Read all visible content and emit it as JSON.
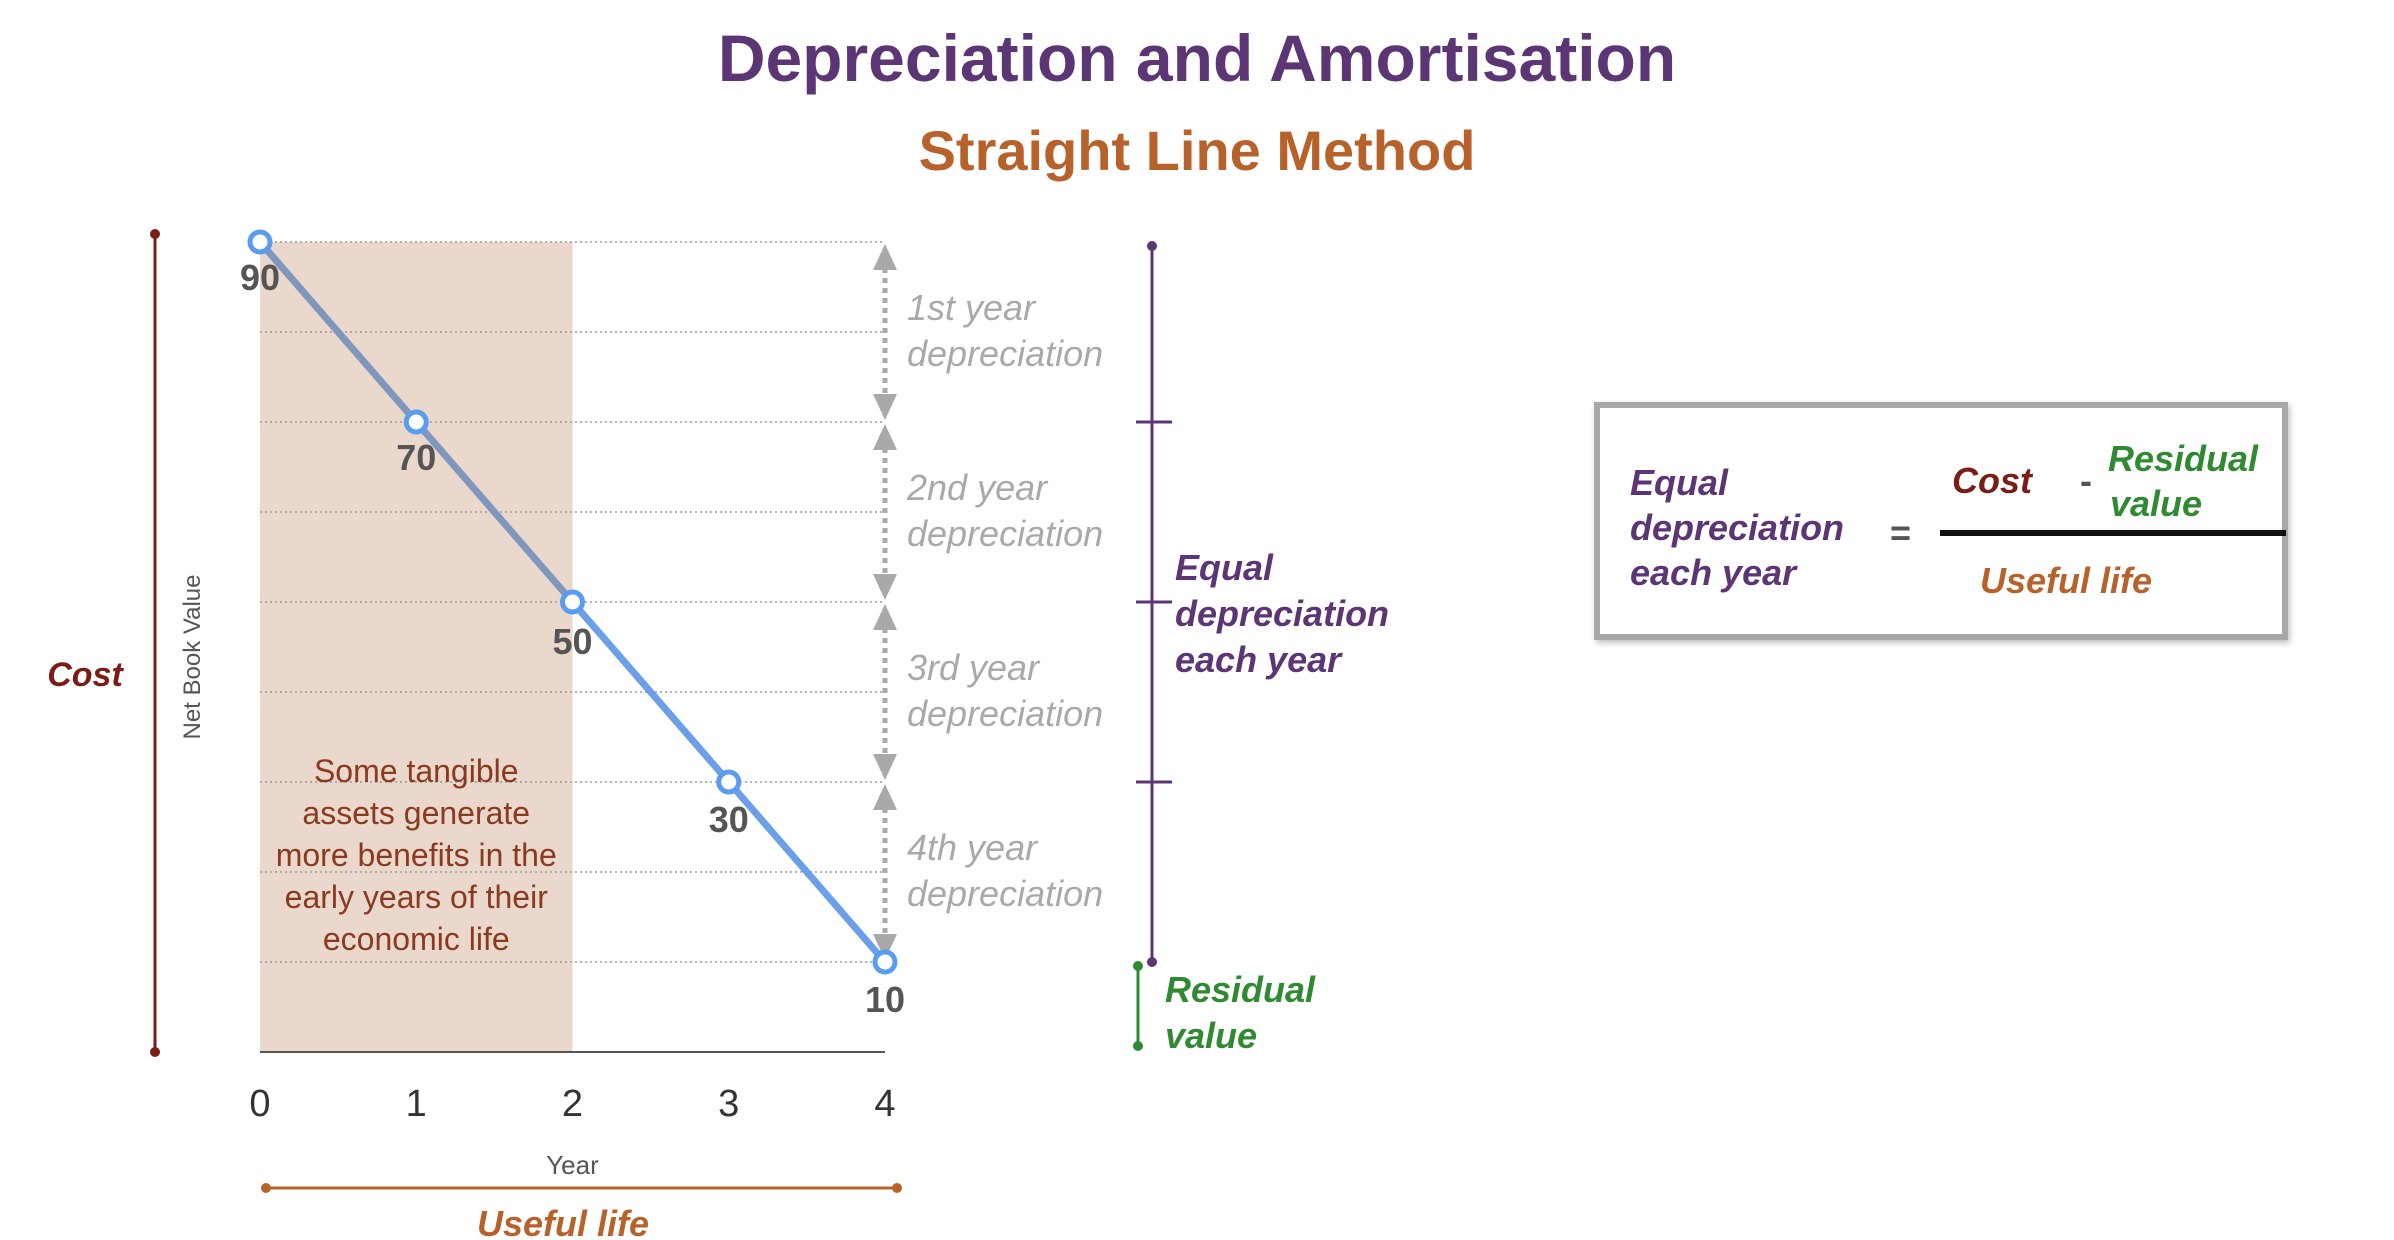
{
  "title": "Depreciation and Amortisation",
  "subtitle": "Straight Line Method",
  "chart_data": {
    "type": "line",
    "title": "Depreciation and Amortisation",
    "subtitle": "Straight Line Method",
    "xlabel": "Year",
    "ylabel": "Net Book Value",
    "x": [
      0,
      1,
      2,
      3,
      4
    ],
    "series": [
      {
        "values": [
          90,
          70,
          50,
          30,
          10
        ],
        "color": "#6b9fe8"
      }
    ],
    "data_labels": [
      "90",
      "70",
      "50",
      "30",
      "10"
    ],
    "xlim": [
      0,
      4
    ],
    "ylim": [
      0,
      90
    ],
    "grid": "horizontal dotted"
  },
  "annotations": {
    "cost": "Cost",
    "useful_life": "Useful life",
    "highlight_note": [
      "Some tangible",
      "assets generate",
      "more benefits in the",
      "early years of their",
      "economic life"
    ],
    "depreciation_labels": [
      [
        "1st year",
        "depreciation"
      ],
      [
        "2nd year",
        "depreciation"
      ],
      [
        "3rd year",
        "depreciation"
      ],
      [
        "4th year",
        "depreciation"
      ]
    ],
    "equal_depreciation": [
      "Equal",
      "depreciation",
      "each year"
    ],
    "residual_value": [
      "Residual",
      "value"
    ]
  },
  "formula": {
    "lhs": [
      "Equal",
      "depreciation",
      "each year"
    ],
    "equals": "=",
    "numerator_cost": "Cost",
    "minus": "-",
    "numerator_residual": [
      "Residual",
      "value"
    ],
    "denominator": "Useful life"
  },
  "colors": {
    "title": "#5c3575",
    "subtitle": "#b8622b",
    "cost": "#7a1d16",
    "line_early": "#7f96bd",
    "line_late": "#6b9fe8",
    "highlight": "#ead8cc",
    "residual": "#2f8a32",
    "equal": "#5c3575",
    "useful_life": "#b8622b",
    "arrows": "#a9a9a9"
  }
}
